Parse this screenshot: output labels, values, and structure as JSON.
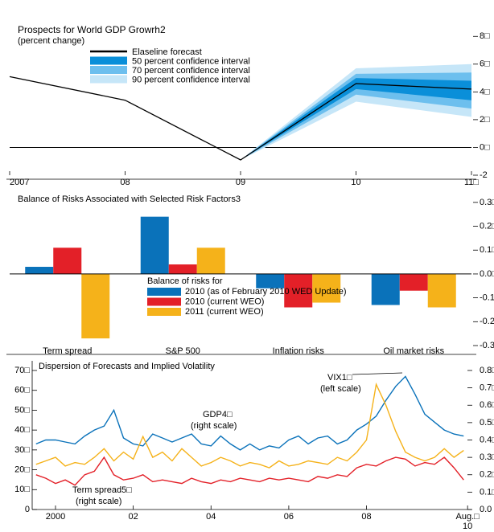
{
  "chart_data": [
    {
      "type": "fan",
      "title": "Prospects for World GDP Growrh2",
      "subtitle": "(percent change)",
      "xlim": [
        2007,
        2011
      ],
      "xticks": [
        2007,
        {
          "value": 2008,
          "label": "08"
        },
        {
          "value": 2009,
          "label": "09"
        },
        {
          "value": 2010,
          "label": "10"
        },
        {
          "value": 2011,
          "label": "11□"
        }
      ],
      "ylim": [
        -2,
        9
      ],
      "yticks": [
        -2,
        {
          "value": 0,
          "label": "0□"
        },
        {
          "value": 2,
          "label": "2□"
        },
        {
          "value": 4,
          "label": "4□"
        },
        {
          "value": 6,
          "label": "6□"
        },
        {
          "value": 8,
          "label": "8□"
        }
      ],
      "series": [
        {
          "name": "Elaseline forecast",
          "color": "#000000",
          "x": [
            2007,
            2008,
            2009,
            2010,
            2011
          ],
          "values": [
            5.1,
            3.4,
            -0.9,
            4.6,
            4.2
          ]
        }
      ],
      "intervals": [
        {
          "name": "50 percent confidence interval",
          "color": "#0a8fd9",
          "x": [
            2009,
            2010,
            2011
          ],
          "low": [
            -0.9,
            4.2,
            3.4
          ],
          "high": [
            -0.9,
            5.0,
            4.8
          ]
        },
        {
          "name": "70 percent confidence interval",
          "color": "#6dbfee",
          "x": [
            2009,
            2010,
            2011
          ],
          "low": [
            -0.9,
            3.8,
            2.8
          ],
          "high": [
            -0.9,
            5.3,
            5.4
          ]
        },
        {
          "name": "90 percent confidence interval",
          "color": "#c6e6f8",
          "x": [
            2009,
            2010,
            2011
          ],
          "low": [
            -0.9,
            3.3,
            2.2
          ],
          "high": [
            -0.9,
            5.7,
            6.0
          ]
        }
      ]
    },
    {
      "type": "bar",
      "title": "Balance of Risks Associated with Selected Risk Factors3",
      "legend_title": "Balance of risks for",
      "categories": [
        "Term spread",
        "S&P 500",
        "Inflation risks",
        "Oil market risks"
      ],
      "ylim": [
        -0.3,
        0.35
      ],
      "yticks": [
        {
          "value": -0.3,
          "label": "-0.3"
        },
        {
          "value": -0.2,
          "label": "-0.2□"
        },
        {
          "value": -0.1,
          "label": "-0.1□"
        },
        {
          "value": 0,
          "label": "0.0□"
        },
        {
          "value": 0.1,
          "label": "0.1□"
        },
        {
          "value": 0.2,
          "label": "0.2□"
        },
        {
          "value": 0.3,
          "label": "0.3□"
        }
      ],
      "series": [
        {
          "name": "2010 (as of February 2010 WED Update)",
          "color": "#0a72ba",
          "values": [
            0.03,
            0.24,
            -0.06,
            -0.13
          ]
        },
        {
          "name": "2010 (current WEO)",
          "color": "#e32028",
          "values": [
            0.11,
            0.04,
            -0.14,
            -0.07
          ]
        },
        {
          "name": "2011 (current WEO)",
          "color": "#f5b21a",
          "values": [
            -0.27,
            0.11,
            -0.12,
            -0.14
          ]
        }
      ]
    },
    {
      "type": "line",
      "title": "Dispersion of Forecasts and Implied Volatility",
      "x": [
        1999.5,
        1999.75,
        2000,
        2000.25,
        2000.5,
        2000.75,
        2001,
        2001.25,
        2001.5,
        2001.75,
        2002,
        2002.25,
        2002.5,
        2002.75,
        2003,
        2003.25,
        2003.5,
        2003.75,
        2004,
        2004.25,
        2004.5,
        2004.75,
        2005,
        2005.25,
        2005.5,
        2005.75,
        2006,
        2006.25,
        2006.5,
        2006.75,
        2007,
        2007.25,
        2007.5,
        2007.75,
        2008,
        2008.25,
        2008.5,
        2008.75,
        2009,
        2009.25,
        2009.5,
        2009.75,
        2010,
        2010.25,
        2010.5
      ],
      "xlim": [
        1999.4,
        2010.7
      ],
      "xticks": [
        2000,
        {
          "value": 2002,
          "label": "02"
        },
        {
          "value": 2004,
          "label": "04"
        },
        {
          "value": 2006,
          "label": "06"
        },
        {
          "value": 2008,
          "label": "08"
        },
        {
          "value": 2010.6,
          "label": "Aug.□\n10"
        }
      ],
      "ylim": [
        0,
        70
      ],
      "yticks": [
        0,
        {
          "value": 10,
          "label": "10□"
        },
        {
          "value": 20,
          "label": "20□"
        },
        {
          "value": 30,
          "label": "30□"
        },
        {
          "value": 40,
          "label": "40□"
        },
        {
          "value": 50,
          "label": "50□"
        },
        {
          "value": 60,
          "label": "60□"
        },
        {
          "value": 70,
          "label": "70□"
        }
      ],
      "y2lim": [
        0,
        0.8
      ],
      "y2ticks": [
        {
          "value": 0,
          "label": "0.0"
        },
        {
          "value": 0.1,
          "label": "0.1□"
        },
        {
          "value": 0.2,
          "label": "0.2□"
        },
        {
          "value": 0.3,
          "label": "0.3□"
        },
        {
          "value": 0.4,
          "label": "0.4□"
        },
        {
          "value": 0.5,
          "label": "0.5□"
        },
        {
          "value": 0.6,
          "label": "0.6□"
        },
        {
          "value": 0.7,
          "label": "0.7□"
        },
        {
          "value": 0.8,
          "label": "0.8□"
        }
      ],
      "series": [
        {
          "color": "#0a72ba",
          "values": [
            33,
            35,
            35,
            34,
            33,
            37,
            40,
            42,
            50,
            36,
            33,
            32,
            38,
            36,
            34,
            36,
            38,
            33,
            32,
            37,
            33,
            30,
            33,
            30,
            32,
            31,
            35,
            37,
            33,
            36,
            37,
            33,
            35,
            40,
            43,
            47,
            55,
            62,
            67,
            58,
            48,
            44,
            40,
            38,
            37
          ]
        },
        {
          "color": "#f5b21a",
          "axis": "y2",
          "values": [
            0.26,
            0.28,
            0.3,
            0.25,
            0.27,
            0.26,
            0.3,
            0.35,
            0.28,
            0.33,
            0.29,
            0.42,
            0.3,
            0.33,
            0.28,
            0.35,
            0.3,
            0.25,
            0.27,
            0.3,
            0.28,
            0.25,
            0.27,
            0.26,
            0.24,
            0.28,
            0.25,
            0.26,
            0.28,
            0.27,
            0.26,
            0.3,
            0.28,
            0.33,
            0.4,
            0.72,
            0.6,
            0.45,
            0.33,
            0.3,
            0.28,
            0.3,
            0.35,
            0.3,
            0.34
          ]
        },
        {
          "color": "#e32028",
          "axis": "y2",
          "values": [
            0.2,
            0.18,
            0.15,
            0.17,
            0.14,
            0.2,
            0.22,
            0.3,
            0.2,
            0.17,
            0.18,
            0.2,
            0.16,
            0.17,
            0.16,
            0.15,
            0.18,
            0.16,
            0.15,
            0.17,
            0.16,
            0.18,
            0.17,
            0.16,
            0.18,
            0.17,
            0.18,
            0.17,
            0.16,
            0.19,
            0.18,
            0.2,
            0.19,
            0.24,
            0.26,
            0.25,
            0.28,
            0.3,
            0.29,
            0.25,
            0.27,
            0.26,
            0.3,
            0.24,
            0.17
          ]
        }
      ],
      "annotations": [
        "VIX1□",
        "(left scale)",
        "GDP4□",
        "(right scale)",
        "Term spread5□",
        "(right scale)"
      ]
    }
  ]
}
